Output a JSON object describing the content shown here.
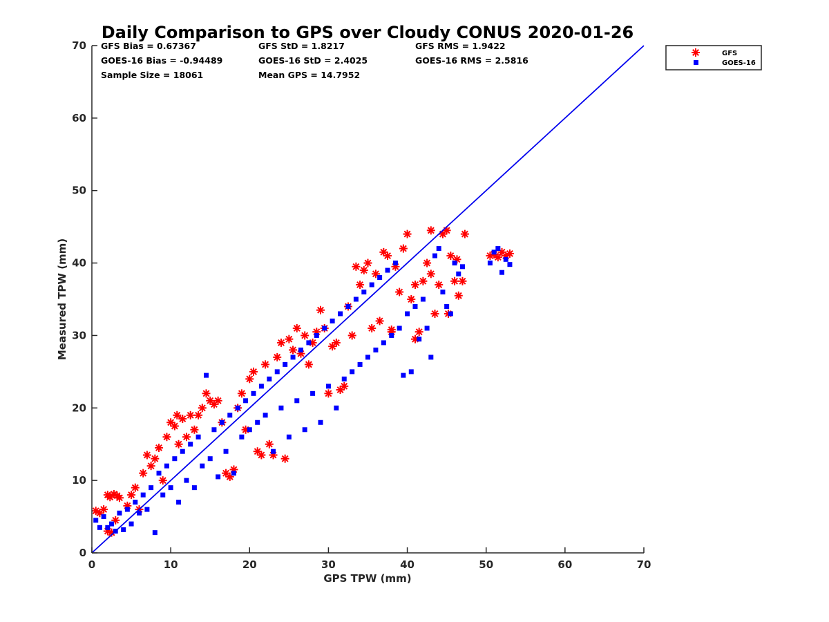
{
  "chart_data": {
    "type": "scatter",
    "title": "Daily Comparison to GPS over Cloudy CONUS 2020-01-26",
    "xlabel": "GPS TPW (mm)",
    "ylabel": "Measured TPW (mm)",
    "xlim": [
      0,
      70
    ],
    "ylim": [
      0,
      70
    ],
    "xticks": [
      0,
      10,
      20,
      30,
      40,
      50,
      60,
      70
    ],
    "yticks": [
      0,
      10,
      20,
      30,
      40,
      50,
      60,
      70
    ],
    "grid": false,
    "legend_position": "outside-top-right",
    "stats": [
      [
        "GFS Bias = 0.67367",
        "GFS StD = 1.8217",
        "GFS RMS = 1.9422"
      ],
      [
        "GOES-16 Bias = -0.94489",
        "GOES-16 StD = 2.4025",
        "GOES-16 RMS = 2.5816"
      ],
      [
        "Sample Size = 18061",
        "Mean GPS = 14.7952",
        ""
      ]
    ],
    "reference_line": {
      "x": [
        0,
        70
      ],
      "y": [
        0,
        70
      ],
      "color": "#0000ee"
    },
    "series": [
      {
        "name": "GFS",
        "marker": "asterisk",
        "color": "#ff0000",
        "points": [
          [
            0.5,
            5.8
          ],
          [
            1.0,
            5.5
          ],
          [
            1.5,
            6.0
          ],
          [
            2.0,
            8.0
          ],
          [
            2.3,
            7.7
          ],
          [
            2.8,
            8.1
          ],
          [
            3.2,
            7.9
          ],
          [
            3.5,
            7.6
          ],
          [
            2.0,
            3.0
          ],
          [
            2.5,
            2.8
          ],
          [
            3.0,
            4.5
          ],
          [
            4.5,
            6.5
          ],
          [
            5.0,
            8.0
          ],
          [
            5.5,
            9.0
          ],
          [
            6.0,
            6.0
          ],
          [
            6.5,
            11.0
          ],
          [
            7.0,
            13.5
          ],
          [
            7.5,
            12.0
          ],
          [
            8.0,
            13.0
          ],
          [
            8.5,
            14.5
          ],
          [
            9.0,
            10.0
          ],
          [
            9.5,
            16.0
          ],
          [
            10.0,
            18.0
          ],
          [
            10.5,
            17.5
          ],
          [
            10.8,
            19.0
          ],
          [
            11.0,
            15.0
          ],
          [
            11.5,
            18.5
          ],
          [
            12.0,
            16.0
          ],
          [
            12.5,
            19.0
          ],
          [
            13.0,
            17.0
          ],
          [
            13.5,
            19.0
          ],
          [
            14.0,
            20.0
          ],
          [
            14.5,
            22.0
          ],
          [
            15.0,
            21.0
          ],
          [
            15.5,
            20.5
          ],
          [
            16.0,
            21.0
          ],
          [
            16.5,
            18.0
          ],
          [
            17.0,
            11.0
          ],
          [
            17.5,
            10.5
          ],
          [
            18.0,
            11.5
          ],
          [
            18.5,
            20.0
          ],
          [
            19.0,
            22.0
          ],
          [
            19.5,
            17.0
          ],
          [
            20.0,
            24.0
          ],
          [
            20.5,
            25.0
          ],
          [
            21.0,
            14.0
          ],
          [
            21.5,
            13.5
          ],
          [
            22.0,
            26.0
          ],
          [
            22.5,
            15.0
          ],
          [
            23.0,
            13.5
          ],
          [
            23.5,
            27.0
          ],
          [
            24.0,
            29.0
          ],
          [
            24.5,
            13.0
          ],
          [
            25.0,
            29.5
          ],
          [
            25.5,
            28.0
          ],
          [
            26.0,
            31.0
          ],
          [
            26.5,
            27.5
          ],
          [
            27.0,
            30.0
          ],
          [
            27.5,
            26.0
          ],
          [
            28.0,
            29.0
          ],
          [
            28.5,
            30.5
          ],
          [
            29.0,
            33.5
          ],
          [
            29.5,
            31.0
          ],
          [
            30.0,
            22.0
          ],
          [
            30.5,
            28.5
          ],
          [
            31.0,
            29.0
          ],
          [
            31.5,
            22.5
          ],
          [
            32.0,
            23.0
          ],
          [
            32.5,
            34.0
          ],
          [
            33.0,
            30.0
          ],
          [
            33.5,
            39.5
          ],
          [
            34.0,
            37.0
          ],
          [
            34.5,
            39.0
          ],
          [
            35.0,
            40.0
          ],
          [
            35.5,
            31.0
          ],
          [
            36.0,
            38.5
          ],
          [
            36.5,
            32.0
          ],
          [
            37.0,
            41.5
          ],
          [
            37.5,
            41.0
          ],
          [
            38.0,
            30.5
          ],
          [
            38.5,
            39.5
          ],
          [
            39.0,
            36.0
          ],
          [
            39.5,
            42.0
          ],
          [
            40.0,
            44.0
          ],
          [
            40.5,
            35.0
          ],
          [
            41.0,
            37.0
          ],
          [
            41.5,
            30.5
          ],
          [
            42.0,
            37.5
          ],
          [
            42.5,
            40.0
          ],
          [
            43.0,
            44.5
          ],
          [
            43.5,
            33.0
          ],
          [
            44.0,
            37.0
          ],
          [
            44.5,
            44.0
          ],
          [
            45.0,
            44.5
          ],
          [
            45.2,
            33.0
          ],
          [
            45.5,
            41.0
          ],
          [
            46.0,
            37.5
          ],
          [
            46.3,
            40.5
          ],
          [
            46.5,
            35.5
          ],
          [
            47.0,
            37.5
          ],
          [
            47.3,
            44.0
          ],
          [
            50.5,
            41.0
          ],
          [
            51.0,
            41.2
          ],
          [
            51.5,
            40.8
          ],
          [
            52.0,
            41.5
          ],
          [
            52.5,
            41.0
          ],
          [
            53.0,
            41.3
          ],
          [
            38.0,
            30.8
          ],
          [
            41.0,
            29.5
          ],
          [
            43.0,
            38.5
          ]
        ]
      },
      {
        "name": "GOES-16",
        "marker": "square",
        "color": "#0000ff",
        "points": [
          [
            0.5,
            4.5
          ],
          [
            1.0,
            3.5
          ],
          [
            1.5,
            5.0
          ],
          [
            2.0,
            3.5
          ],
          [
            2.5,
            4.0
          ],
          [
            3.0,
            3.0
          ],
          [
            3.5,
            5.5
          ],
          [
            4.0,
            3.2
          ],
          [
            4.5,
            6.0
          ],
          [
            5.0,
            4.0
          ],
          [
            5.5,
            7.0
          ],
          [
            6.0,
            5.5
          ],
          [
            6.5,
            8.0
          ],
          [
            7.0,
            6.0
          ],
          [
            7.5,
            9.0
          ],
          [
            8.0,
            2.8
          ],
          [
            8.5,
            11.0
          ],
          [
            9.0,
            8.0
          ],
          [
            9.5,
            12.0
          ],
          [
            10.0,
            9.0
          ],
          [
            10.5,
            13.0
          ],
          [
            11.0,
            7.0
          ],
          [
            11.5,
            14.0
          ],
          [
            12.0,
            10.0
          ],
          [
            12.5,
            15.0
          ],
          [
            13.0,
            9.0
          ],
          [
            13.5,
            16.0
          ],
          [
            14.0,
            12.0
          ],
          [
            14.5,
            24.5
          ],
          [
            15.0,
            13.0
          ],
          [
            15.5,
            17.0
          ],
          [
            16.0,
            10.5
          ],
          [
            16.5,
            18.0
          ],
          [
            17.0,
            14.0
          ],
          [
            17.5,
            19.0
          ],
          [
            18.0,
            11.0
          ],
          [
            18.5,
            20.0
          ],
          [
            19.0,
            16.0
          ],
          [
            19.5,
            21.0
          ],
          [
            20.0,
            17.0
          ],
          [
            20.5,
            22.0
          ],
          [
            21.0,
            18.0
          ],
          [
            21.5,
            23.0
          ],
          [
            22.0,
            19.0
          ],
          [
            22.5,
            24.0
          ],
          [
            23.0,
            14.0
          ],
          [
            23.5,
            25.0
          ],
          [
            24.0,
            20.0
          ],
          [
            24.5,
            26.0
          ],
          [
            25.0,
            16.0
          ],
          [
            25.5,
            27.0
          ],
          [
            26.0,
            21.0
          ],
          [
            26.5,
            28.0
          ],
          [
            27.0,
            17.0
          ],
          [
            27.5,
            29.0
          ],
          [
            28.0,
            22.0
          ],
          [
            28.5,
            30.0
          ],
          [
            29.0,
            18.0
          ],
          [
            29.5,
            31.0
          ],
          [
            30.0,
            23.0
          ],
          [
            30.5,
            32.0
          ],
          [
            31.0,
            20.0
          ],
          [
            31.5,
            33.0
          ],
          [
            32.0,
            24.0
          ],
          [
            32.5,
            34.0
          ],
          [
            33.0,
            25.0
          ],
          [
            33.5,
            35.0
          ],
          [
            34.0,
            26.0
          ],
          [
            34.5,
            36.0
          ],
          [
            35.0,
            27.0
          ],
          [
            35.5,
            37.0
          ],
          [
            36.0,
            28.0
          ],
          [
            36.5,
            38.0
          ],
          [
            37.0,
            29.0
          ],
          [
            37.5,
            39.0
          ],
          [
            38.0,
            30.0
          ],
          [
            38.5,
            40.0
          ],
          [
            39.0,
            31.0
          ],
          [
            39.5,
            24.5
          ],
          [
            40.0,
            33.0
          ],
          [
            40.5,
            25.0
          ],
          [
            41.0,
            34.0
          ],
          [
            41.5,
            29.5
          ],
          [
            42.0,
            35.0
          ],
          [
            42.5,
            31.0
          ],
          [
            43.0,
            27.0
          ],
          [
            43.5,
            41.0
          ],
          [
            44.0,
            42.0
          ],
          [
            44.5,
            36.0
          ],
          [
            45.0,
            34.0
          ],
          [
            45.5,
            33.0
          ],
          [
            46.0,
            40.0
          ],
          [
            46.5,
            38.5
          ],
          [
            47.0,
            39.5
          ],
          [
            50.5,
            40.0
          ],
          [
            51.0,
            41.5
          ],
          [
            51.5,
            42.0
          ],
          [
            52.0,
            38.7
          ],
          [
            52.5,
            40.5
          ],
          [
            53.0,
            39.8
          ]
        ]
      }
    ],
    "colors": {
      "gfs": "#ff0000",
      "goes16": "#0000ff",
      "reference_line": "#0000ee",
      "axes": "#262626"
    }
  }
}
